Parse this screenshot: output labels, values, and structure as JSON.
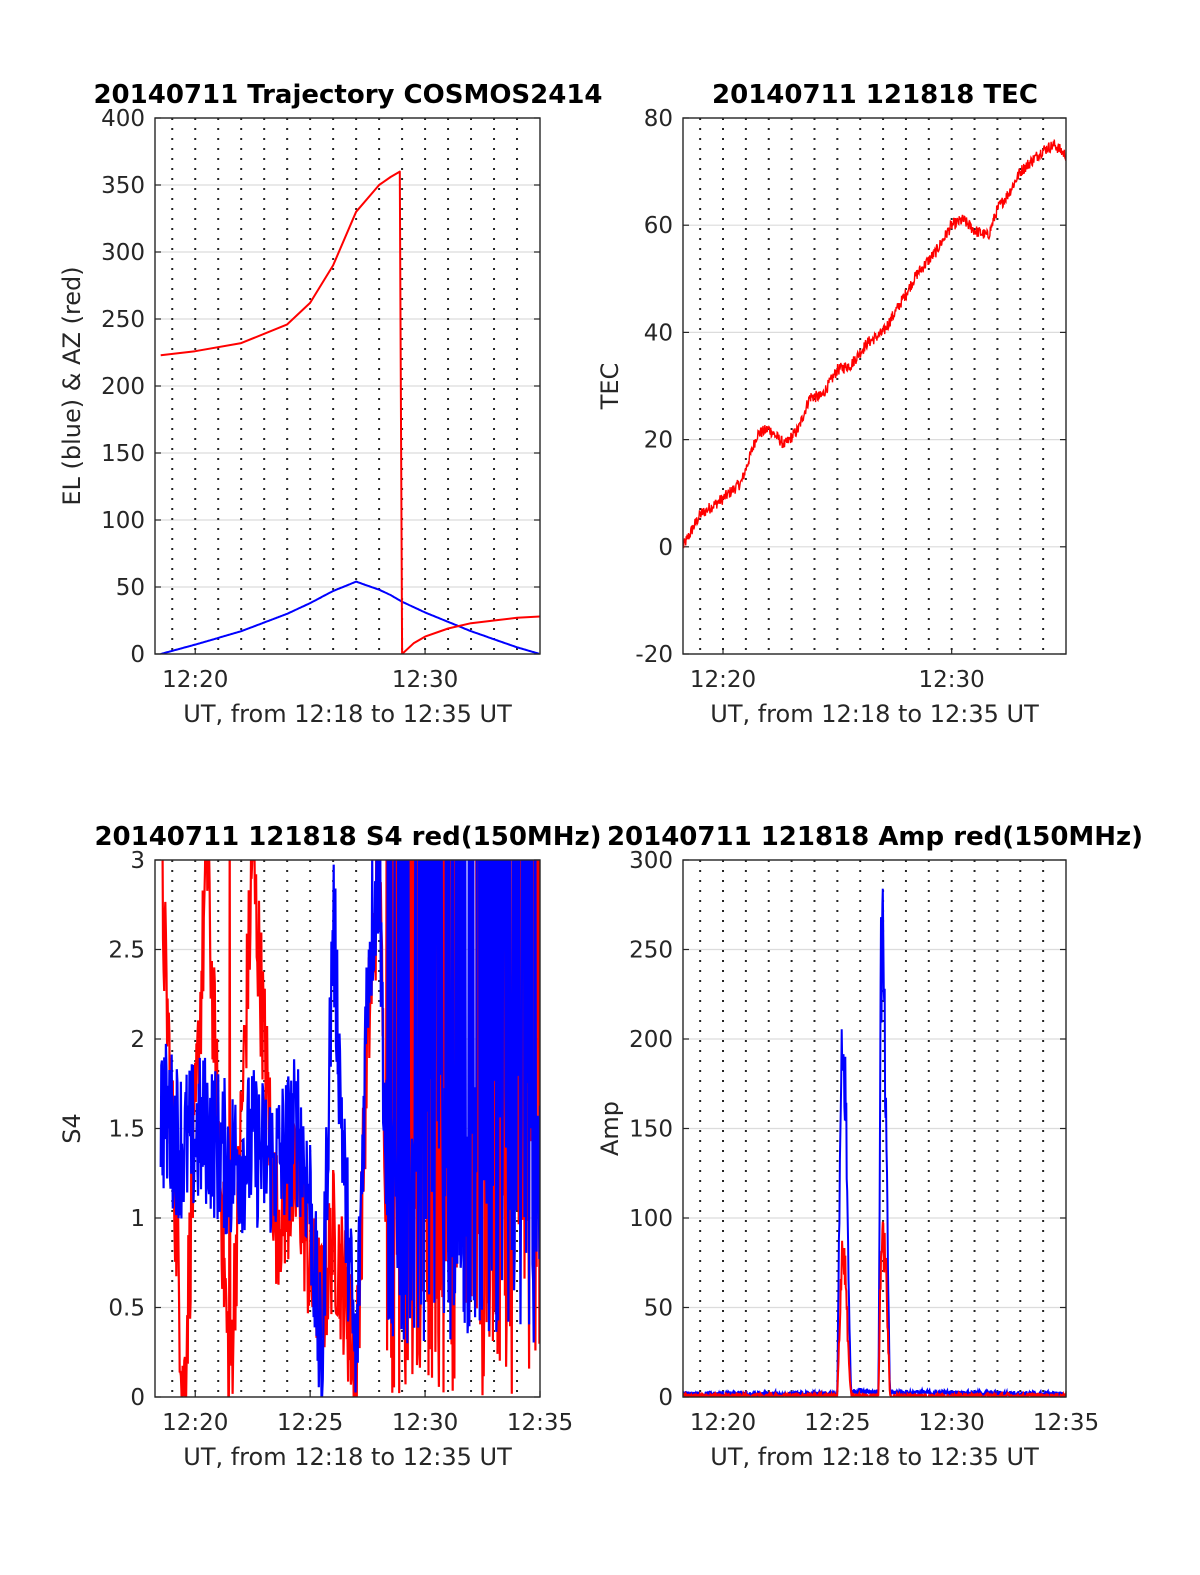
{
  "figure": {
    "panels": [
      {
        "id": "traj",
        "title": "20140711 Trajectory COSMOS2414",
        "xlabel": "UT, from 12:18 to 12:35 UT",
        "ylabel": "EL (blue) & AZ (red)",
        "yticks": [
          "0",
          "50",
          "100",
          "150",
          "200",
          "250",
          "300",
          "350",
          "400"
        ],
        "xticks": [
          "12:20",
          "12:30"
        ]
      },
      {
        "id": "tec",
        "title": "20140711 121818 TEC",
        "xlabel": "UT, from 12:18 to 12:35 UT",
        "ylabel": "TEC",
        "yticks": [
          "-20",
          "0",
          "20",
          "40",
          "60",
          "80"
        ],
        "xticks": [
          "12:20",
          "12:30"
        ]
      },
      {
        "id": "s4",
        "title": "20140711 121818 S4 red(150MHz)",
        "xlabel": "UT, from 12:18 to 12:35 UT",
        "ylabel": "S4",
        "yticks": [
          "0",
          "0.5",
          "1",
          "1.5",
          "2",
          "2.5",
          "3"
        ],
        "xticks": [
          "12:20",
          "12:25",
          "12:30",
          "12:35"
        ]
      },
      {
        "id": "amp",
        "title": "20140711 121818 Amp red(150MHz)",
        "xlabel": "UT, from 12:18 to 12:35 UT",
        "ylabel": "Amp",
        "yticks": [
          "0",
          "50",
          "100",
          "150",
          "200",
          "250",
          "300"
        ],
        "xticks": [
          "12:20",
          "12:25",
          "12:30",
          "12:35"
        ]
      }
    ]
  },
  "chart_data": [
    {
      "type": "line",
      "title": "20140711 Trajectory COSMOS2414",
      "xlabel": "UT, from 12:18 to 12:35 UT",
      "ylabel": "EL (blue) & AZ (red)",
      "xlim_minutes_after_12": [
        18.25,
        35.0
      ],
      "ylim": [
        0,
        400
      ],
      "grid": "on",
      "x_minutes_after_12": [
        18.5,
        20,
        22,
        24,
        25,
        26,
        27,
        28,
        28.5,
        28.9,
        29.0,
        29.5,
        30,
        31,
        32,
        33,
        34,
        35
      ],
      "series": [
        {
          "name": "EL",
          "color": "#0000ff",
          "values": [
            0,
            7,
            17,
            30,
            38,
            47,
            54,
            48,
            44,
            40,
            39,
            35,
            31,
            24,
            17,
            11,
            5,
            0
          ]
        },
        {
          "name": "AZ",
          "color": "#ff0000",
          "values": [
            223,
            226,
            232,
            246,
            262,
            290,
            330,
            350,
            356,
            360,
            0,
            8,
            13,
            19,
            23,
            25,
            27,
            28
          ]
        }
      ]
    },
    {
      "type": "line",
      "title": "20140711 121818 TEC",
      "xlabel": "UT, from 12:18 to 12:35 UT",
      "ylabel": "TEC",
      "xlim_minutes_after_12": [
        18.25,
        35.0
      ],
      "ylim": [
        -20,
        80
      ],
      "grid": "on",
      "x_minutes_after_12": [
        18.25,
        19,
        20,
        20.8,
        21.5,
        22,
        22.7,
        23.3,
        23.8,
        24.3,
        25,
        25.6,
        26.3,
        27,
        27.7,
        28.5,
        29.3,
        30,
        30.5,
        31,
        31.6,
        32,
        32.5,
        33,
        34,
        34.5,
        35
      ],
      "series": [
        {
          "name": "",
          "color": "#ff0000",
          "values": [
            0,
            6,
            9,
            12,
            21,
            22,
            19,
            22,
            28,
            28,
            33,
            34,
            38,
            40,
            45,
            51,
            55,
            60,
            61,
            59,
            58,
            63,
            66,
            70,
            74,
            75,
            73
          ]
        }
      ]
    },
    {
      "type": "line",
      "title": "20140711 121818 S4 red(150MHz)",
      "xlabel": "UT, from 12:18 to 12:35 UT",
      "ylabel": "S4",
      "xlim_minutes_after_12": [
        18.25,
        35.0
      ],
      "ylim": [
        0,
        3
      ],
      "grid": "on",
      "note_series": "red: 150MHz S4, blue: second channel S4",
      "x_minutes_after_12": [
        18.5,
        19.5,
        20.5,
        21.5,
        22.5,
        23.5,
        24.5,
        25.0,
        25.5,
        26.0,
        26.5,
        27.0,
        27.5,
        28.0,
        28.5,
        29.0,
        29.5,
        30,
        31,
        32,
        33,
        34,
        35
      ],
      "series": [
        {
          "name": "red",
          "color": "#ff0000",
          "values": [
            3,
            0,
            3,
            0,
            3,
            1,
            1.2,
            0.7,
            0.5,
            0.9,
            0.6,
            0.1,
            2.0,
            3,
            0,
            3,
            0,
            3,
            0,
            3,
            0,
            3,
            0
          ]
        },
        {
          "name": "blue",
          "color": "#0000ff",
          "values": [
            1.6,
            1.4,
            1.5,
            1.3,
            1.4,
            1.3,
            1.5,
            1.1,
            0.1,
            2.7,
            1.2,
            0.1,
            2.4,
            3,
            0,
            3,
            0,
            3,
            0,
            3,
            0,
            3,
            0
          ]
        }
      ]
    },
    {
      "type": "line",
      "title": "20140711 121818 Amp red(150MHz)",
      "xlabel": "UT, from 12:18 to 12:35 UT",
      "ylabel": "Amp",
      "xlim_minutes_after_12": [
        18.25,
        35.0
      ],
      "ylim": [
        0,
        300
      ],
      "grid": "on",
      "x_minutes_after_12": [
        18.25,
        25.0,
        25.1,
        25.2,
        25.35,
        25.5,
        25.6,
        26.0,
        26.8,
        26.9,
        27.0,
        27.1,
        27.3,
        35.0
      ],
      "series": [
        {
          "name": "blue",
          "color": "#0000ff",
          "values": [
            1,
            1,
            120,
            185,
            175,
            60,
            2,
            3,
            2,
            240,
            252,
            170,
            2,
            1
          ]
        },
        {
          "name": "red",
          "color": "#ff0000",
          "values": [
            0,
            0,
            40,
            85,
            70,
            20,
            0,
            0,
            0,
            80,
            85,
            80,
            0,
            0
          ]
        }
      ]
    }
  ]
}
